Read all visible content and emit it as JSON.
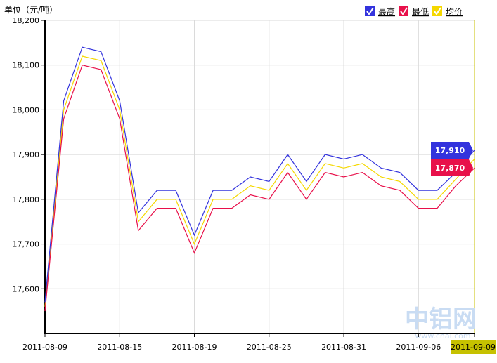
{
  "chart_data": {
    "type": "line",
    "ylabel": "单位（元/吨）",
    "x": [
      "2011-08-09",
      "2011-08-10",
      "2011-08-11",
      "2011-08-12",
      "2011-08-15",
      "2011-08-16",
      "2011-08-17",
      "2011-08-18",
      "2011-08-19",
      "2011-08-22",
      "2011-08-23",
      "2011-08-24",
      "2011-08-25",
      "2011-08-26",
      "2011-08-29",
      "2011-08-30",
      "2011-08-31",
      "2011-09-01",
      "2011-09-02",
      "2011-09-05",
      "2011-09-06",
      "2011-09-07",
      "2011-09-08",
      "2011-09-09"
    ],
    "xticks": [
      "2011-08-09",
      "2011-08-15",
      "2011-08-19",
      "2011-08-25",
      "2011-08-31",
      "2011-09-06",
      "2011-09-09"
    ],
    "highlight_x": "2011-09-09",
    "yticks": [
      17600,
      17700,
      17800,
      17900,
      18000,
      18100,
      18200
    ],
    "ytick_labels": [
      "17,600",
      "17,700",
      "17,800",
      "17,900",
      "18,000",
      "18,100",
      "18,200"
    ],
    "ylim": [
      17500,
      18200
    ],
    "grid": true,
    "legend_position": "top-right",
    "series": [
      {
        "name": "最高",
        "color": "#3333dd",
        "values": [
          17570,
          18020,
          18140,
          18130,
          18020,
          17770,
          17820,
          17820,
          17720,
          17820,
          17820,
          17850,
          17840,
          17900,
          17840,
          17900,
          17890,
          17900,
          17870,
          17860,
          17820,
          17820,
          17860,
          17910
        ]
      },
      {
        "name": "最低",
        "color": "#e8104a",
        "values": [
          17550,
          17980,
          18100,
          18090,
          17980,
          17730,
          17780,
          17780,
          17680,
          17780,
          17780,
          17810,
          17800,
          17860,
          17800,
          17860,
          17850,
          17860,
          17830,
          17820,
          17780,
          17780,
          17830,
          17870
        ]
      },
      {
        "name": "均价",
        "color": "#f5d800",
        "values": [
          17560,
          18000,
          18120,
          18110,
          18000,
          17750,
          17800,
          17800,
          17700,
          17800,
          17800,
          17830,
          17820,
          17880,
          17820,
          17880,
          17870,
          17880,
          17850,
          17840,
          17800,
          17800,
          17845,
          17890
        ]
      }
    ],
    "value_labels": [
      {
        "series": "最高",
        "text": "17,910"
      },
      {
        "series": "最低",
        "text": "17,870"
      }
    ],
    "watermark": {
      "text": "中铝网",
      "url": "www.cnal.com"
    }
  }
}
